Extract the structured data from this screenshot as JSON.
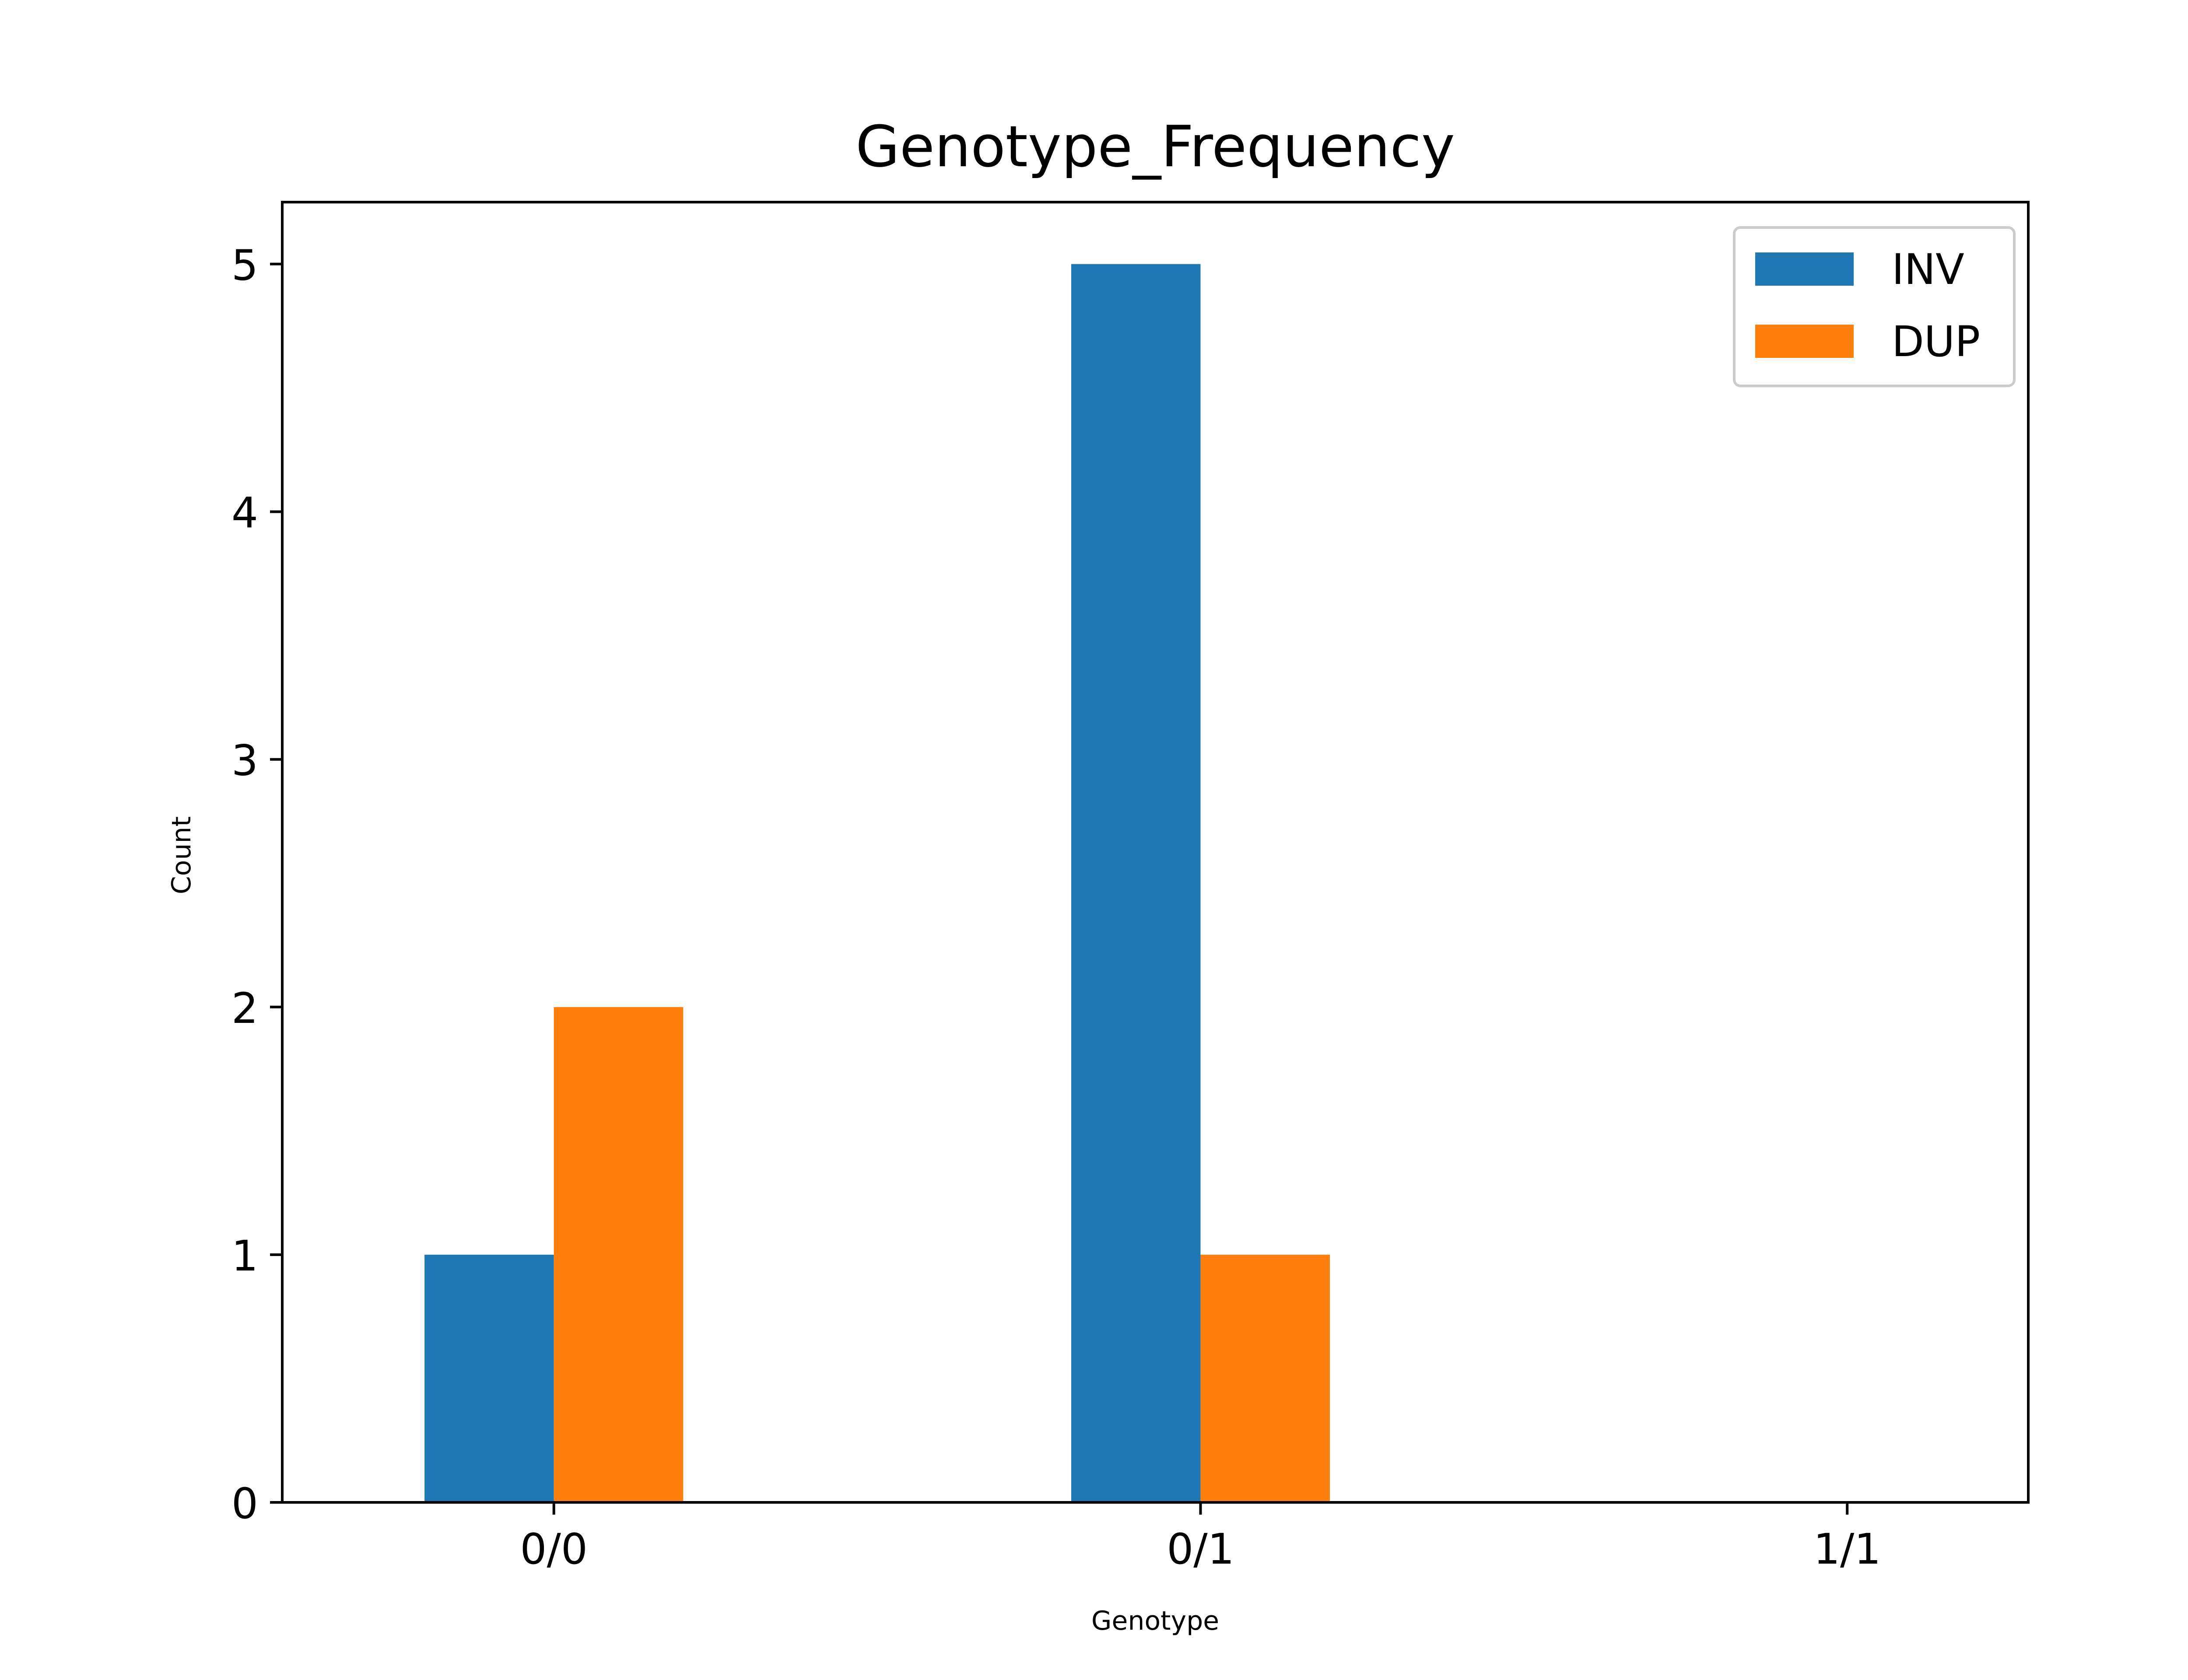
{
  "chart_data": {
    "type": "bar",
    "title": "Genotype_Frequency",
    "xlabel": "Genotype",
    "ylabel": "Count",
    "categories": [
      "0/0",
      "0/1",
      "1/1"
    ],
    "series": [
      {
        "name": "INV",
        "values": [
          1,
          5,
          0
        ],
        "color": "#1f77b4"
      },
      {
        "name": "DUP",
        "values": [
          2,
          1,
          0
        ],
        "color": "#ff7f0e"
      }
    ],
    "ylim": [
      0,
      5.25
    ],
    "yticks": [
      0,
      1,
      2,
      3,
      4,
      5
    ],
    "grid": false,
    "legend_position": "top-right"
  }
}
